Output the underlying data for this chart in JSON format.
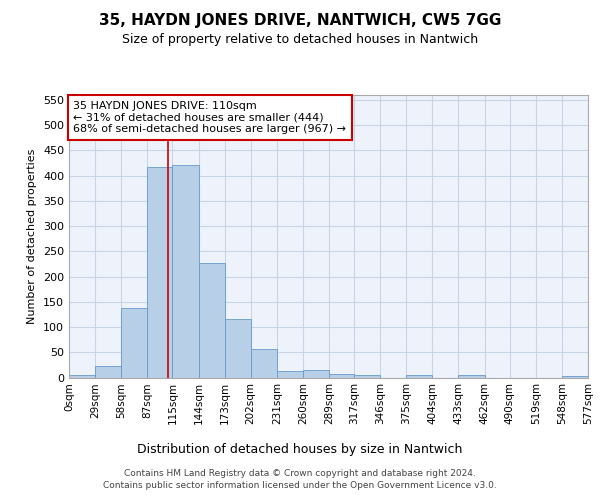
{
  "title": "35, HAYDN JONES DRIVE, NANTWICH, CW5 7GG",
  "subtitle": "Size of property relative to detached houses in Nantwich",
  "xlabel": "Distribution of detached houses by size in Nantwich",
  "ylabel": "Number of detached properties",
  "bar_edges": [
    0,
    29,
    58,
    87,
    115,
    144,
    173,
    202,
    231,
    260,
    289,
    317,
    346,
    375,
    404,
    433,
    462,
    490,
    519,
    548,
    577
  ],
  "bar_heights": [
    5,
    22,
    137,
    418,
    422,
    227,
    115,
    57,
    12,
    14,
    7,
    5,
    0,
    4,
    0,
    4,
    0,
    0,
    0,
    3
  ],
  "bar_color": "#b8cfe8",
  "bar_edge_color": "#6699cc",
  "grid_color": "#c8d4e8",
  "background_color": "#eef2fa",
  "vline_x": 110,
  "vline_color": "#cc0000",
  "annotation_line1": "35 HAYDN JONES DRIVE: 110sqm",
  "annotation_line2": "← 31% of detached houses are smaller (444)",
  "annotation_line3": "68% of semi-detached houses are larger (967) →",
  "annotation_border_color": "#cc0000",
  "ylim_max": 560,
  "yticks": [
    0,
    50,
    100,
    150,
    200,
    250,
    300,
    350,
    400,
    450,
    500,
    550
  ],
  "tick_labels": [
    "0sqm",
    "29sqm",
    "58sqm",
    "87sqm",
    "115sqm",
    "144sqm",
    "173sqm",
    "202sqm",
    "231sqm",
    "260sqm",
    "289sqm",
    "317sqm",
    "346sqm",
    "375sqm",
    "404sqm",
    "433sqm",
    "462sqm",
    "490sqm",
    "519sqm",
    "548sqm",
    "577sqm"
  ],
  "footer_line1": "Contains HM Land Registry data © Crown copyright and database right 2024.",
  "footer_line2": "Contains public sector information licensed under the Open Government Licence v3.0.",
  "title_fontsize": 11,
  "subtitle_fontsize": 9,
  "ylabel_fontsize": 8,
  "xlabel_fontsize": 9,
  "ytick_fontsize": 8,
  "xtick_fontsize": 7.5,
  "annotation_fontsize": 8,
  "footer_fontsize": 6.5
}
